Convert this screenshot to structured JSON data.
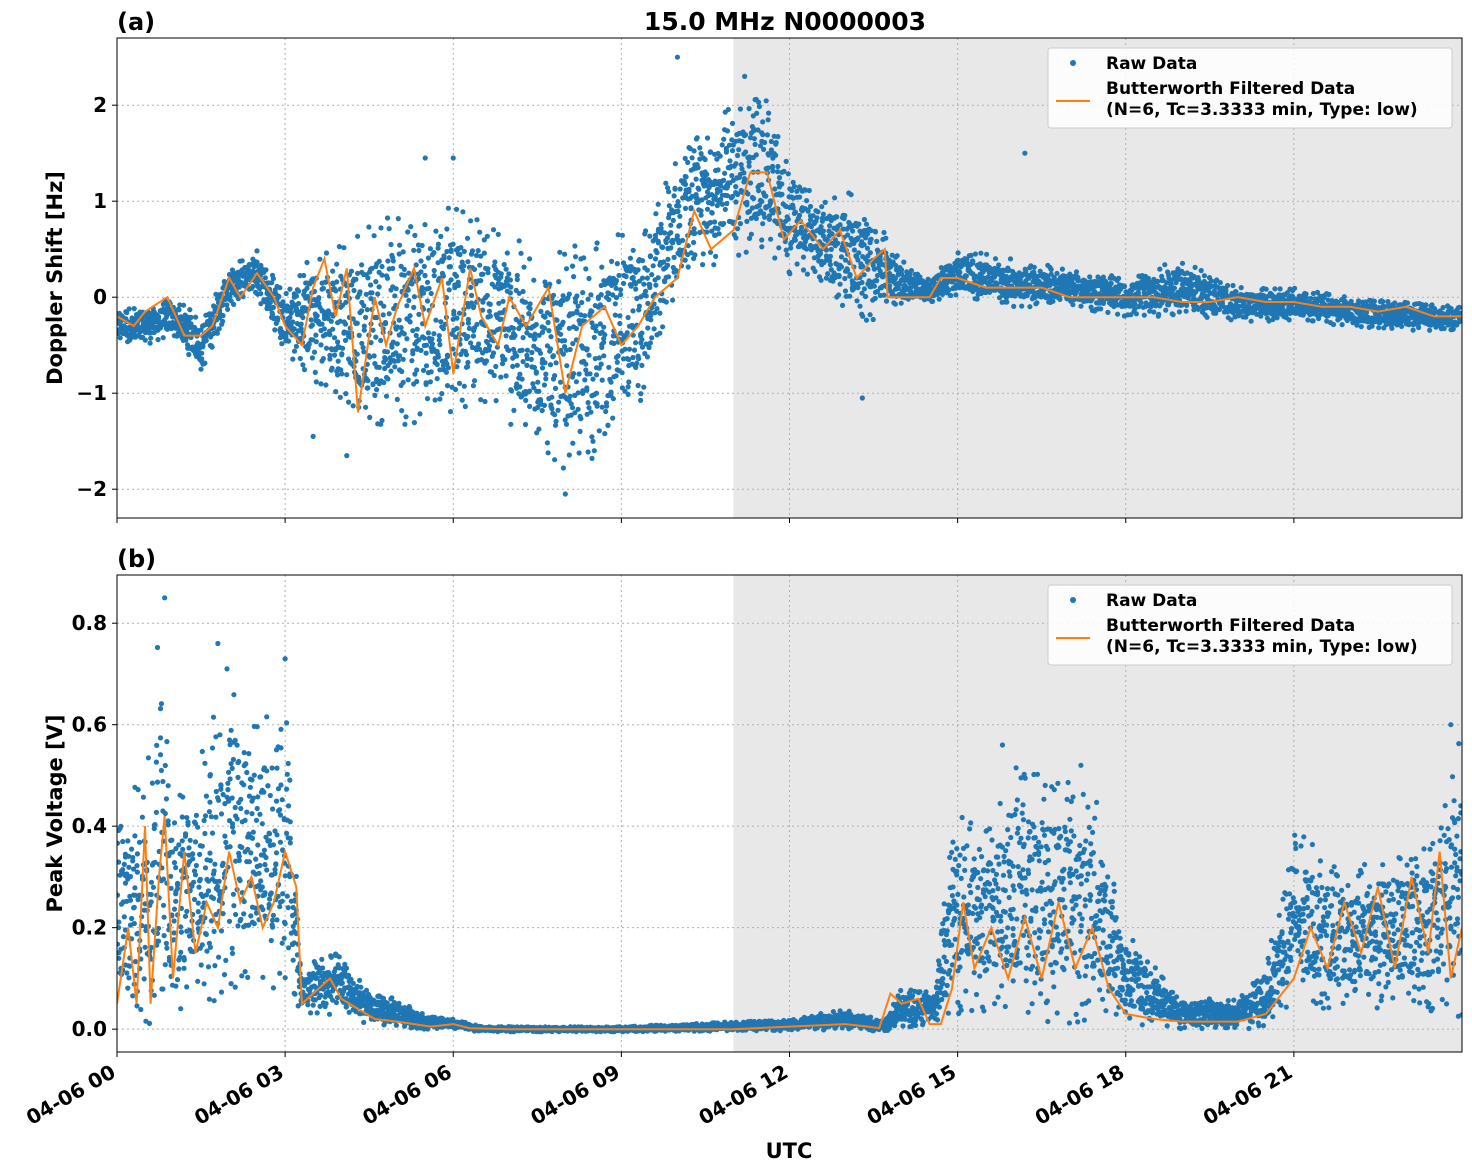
{
  "figure": {
    "title": "15.0 MHz N0000003",
    "xlabel": "UTC"
  },
  "chart_data": [
    {
      "type": "scatter",
      "panel_label": "(a)",
      "title": "15.0 MHz N0000003",
      "xlabel": "UTC",
      "ylabel": "Doppler Shift [Hz]",
      "x_unit": "hours since 04-06 00 UTC",
      "xlim": [
        0,
        24
      ],
      "ylim": [
        -2.3,
        2.7
      ],
      "yticks": [
        2,
        1,
        0,
        -1,
        -2
      ],
      "ytick_labels": [
        "2",
        "1",
        "0",
        "−1",
        "−2"
      ],
      "xticks": [
        0,
        3,
        6,
        9,
        12,
        15,
        18,
        21
      ],
      "xtick_labels": [
        "04-06 00",
        "04-06 03",
        "04-06 06",
        "04-06 09",
        "04-06 12",
        "04-06 15",
        "04-06 18",
        "04-06 21"
      ],
      "grid": true,
      "legend_position": "top-right",
      "shaded_region": [
        11.0,
        24.0
      ],
      "series": [
        {
          "name": "Raw Data",
          "kind": "scatter-band",
          "color": "#1f77b4",
          "x": [
            0.0,
            0.5,
            1.0,
            1.5,
            2.0,
            2.5,
            3.0,
            3.5,
            4.0,
            4.5,
            5.0,
            5.5,
            6.0,
            6.5,
            7.0,
            7.5,
            8.0,
            8.5,
            9.0,
            9.5,
            10.0,
            10.5,
            11.0,
            11.5,
            12.0,
            12.5,
            13.0,
            13.5,
            13.8,
            14.5,
            15.0,
            16.0,
            17.0,
            18.0,
            19.0,
            20.0,
            21.0,
            22.0,
            23.0,
            24.0
          ],
          "upper": [
            -0.1,
            -0.1,
            0.0,
            -0.2,
            0.3,
            0.5,
            0.1,
            0.5,
            0.6,
            0.8,
            0.9,
            1.0,
            1.0,
            0.9,
            0.7,
            0.4,
            0.5,
            0.6,
            0.7,
            0.9,
            1.5,
            1.8,
            2.0,
            2.2,
            1.4,
            1.0,
            1.1,
            1.0,
            0.5,
            0.2,
            0.5,
            0.4,
            0.3,
            0.2,
            0.4,
            0.1,
            0.1,
            0.0,
            -0.05,
            -0.1
          ],
          "lower": [
            -0.5,
            -0.5,
            -0.4,
            -0.8,
            -0.1,
            0.0,
            -0.6,
            -0.9,
            -1.2,
            -1.4,
            -1.3,
            -1.4,
            -1.2,
            -1.1,
            -1.4,
            -1.6,
            -1.8,
            -1.7,
            -1.6,
            -1.0,
            0.0,
            0.3,
            0.4,
            0.5,
            0.2,
            0.2,
            -0.2,
            -0.3,
            -0.1,
            -0.05,
            0.0,
            -0.1,
            -0.1,
            -0.2,
            -0.2,
            -0.25,
            -0.25,
            -0.3,
            -0.35,
            -0.35
          ],
          "outliers": [
            [
              10.0,
              2.5
            ],
            [
              11.2,
              2.3
            ],
            [
              8.0,
              -2.05
            ],
            [
              16.2,
              1.5
            ],
            [
              13.3,
              -1.05
            ],
            [
              5.5,
              1.45
            ],
            [
              6.0,
              1.45
            ],
            [
              4.1,
              -1.65
            ],
            [
              3.5,
              -1.45
            ]
          ]
        },
        {
          "name": "Butterworth Filtered Data\n(N=6, Tc=3.3333 min, Type: low)",
          "kind": "line",
          "color": "#ff7f0e",
          "x": [
            0.0,
            0.3,
            0.5,
            0.9,
            1.2,
            1.5,
            1.7,
            2.0,
            2.2,
            2.5,
            2.8,
            3.0,
            3.3,
            3.5,
            3.7,
            3.9,
            4.1,
            4.3,
            4.6,
            4.8,
            5.0,
            5.3,
            5.5,
            5.8,
            6.0,
            6.3,
            6.5,
            6.8,
            7.0,
            7.3,
            7.7,
            8.0,
            8.3,
            8.7,
            9.0,
            9.3,
            9.6,
            10.0,
            10.3,
            10.6,
            11.0,
            11.3,
            11.6,
            11.9,
            12.2,
            12.6,
            12.9,
            13.2,
            13.5,
            13.7,
            13.75,
            14.0,
            14.5,
            14.7,
            15.0,
            15.5,
            16.0,
            16.5,
            17.0,
            17.5,
            18.0,
            18.5,
            19.0,
            19.5,
            20.0,
            20.5,
            21.0,
            21.5,
            22.0,
            22.5,
            23.0,
            23.5,
            24.0
          ],
          "y": [
            -0.2,
            -0.3,
            -0.15,
            0.0,
            -0.4,
            -0.4,
            -0.3,
            0.2,
            0.0,
            0.25,
            0.0,
            -0.3,
            -0.5,
            0.1,
            0.4,
            -0.2,
            0.3,
            -1.2,
            0.0,
            -0.5,
            -0.1,
            0.3,
            -0.3,
            0.2,
            -0.8,
            0.3,
            -0.2,
            -0.5,
            0.0,
            -0.3,
            0.1,
            -1.0,
            -0.3,
            -0.1,
            -0.5,
            -0.3,
            0.0,
            0.2,
            0.9,
            0.5,
            0.7,
            1.3,
            1.3,
            0.6,
            0.8,
            0.5,
            0.7,
            0.2,
            0.4,
            0.5,
            0.0,
            0.0,
            0.0,
            0.2,
            0.2,
            0.1,
            0.1,
            0.1,
            0.0,
            0.0,
            0.0,
            0.0,
            -0.05,
            -0.05,
            0.0,
            -0.05,
            -0.05,
            -0.1,
            -0.1,
            -0.15,
            -0.1,
            -0.2,
            -0.2
          ]
        }
      ]
    },
    {
      "type": "scatter",
      "panel_label": "(b)",
      "xlabel": "UTC",
      "ylabel": "Peak Voltage [V]",
      "x_unit": "hours since 04-06 00 UTC",
      "xlim": [
        0,
        24
      ],
      "ylim": [
        -0.045,
        0.895
      ],
      "yticks": [
        0.0,
        0.2,
        0.4,
        0.6,
        0.8
      ],
      "ytick_labels": [
        "0.0",
        "0.2",
        "0.4",
        "0.6",
        "0.8"
      ],
      "xticks": [
        0,
        3,
        6,
        9,
        12,
        15,
        18,
        21
      ],
      "xtick_labels": [
        "04-06 00",
        "04-06 03",
        "04-06 06",
        "04-06 09",
        "04-06 12",
        "04-06 15",
        "04-06 18",
        "04-06 21"
      ],
      "grid": true,
      "legend_position": "top-right",
      "shaded_region": [
        11.0,
        24.0
      ],
      "series": [
        {
          "name": "Raw Data",
          "kind": "scatter-band",
          "color": "#1f77b4",
          "x": [
            0.0,
            0.5,
            0.8,
            1.0,
            1.5,
            2.0,
            2.5,
            3.0,
            3.2,
            3.3,
            3.5,
            4.0,
            4.5,
            5.0,
            5.5,
            6.0,
            6.5,
            9.0,
            12.0,
            13.0,
            13.7,
            14.0,
            14.6,
            14.8,
            15.0,
            15.5,
            16.0,
            16.5,
            17.0,
            17.5,
            18.0,
            19.0,
            20.0,
            20.5,
            21.0,
            21.5,
            22.0,
            22.5,
            23.0,
            23.5,
            24.0
          ],
          "upper": [
            0.45,
            0.5,
            0.85,
            0.45,
            0.55,
            0.75,
            0.6,
            0.72,
            0.3,
            0.1,
            0.15,
            0.15,
            0.07,
            0.06,
            0.03,
            0.02,
            0.005,
            0.005,
            0.02,
            0.04,
            0.02,
            0.08,
            0.08,
            0.3,
            0.45,
            0.4,
            0.55,
            0.5,
            0.5,
            0.45,
            0.2,
            0.06,
            0.06,
            0.12,
            0.4,
            0.35,
            0.3,
            0.35,
            0.35,
            0.4,
            0.6
          ],
          "lower": [
            0.0,
            0.0,
            0.0,
            0.03,
            0.05,
            0.05,
            0.1,
            0.05,
            0.05,
            0.03,
            0.03,
            0.02,
            0.01,
            0.005,
            0.0,
            0.0,
            -0.005,
            -0.005,
            -0.003,
            -0.003,
            -0.003,
            0.0,
            0.005,
            0.03,
            0.03,
            0.02,
            0.02,
            0.01,
            0.01,
            0.02,
            0.01,
            0.0,
            0.0,
            0.0,
            0.05,
            0.04,
            0.04,
            0.04,
            0.04,
            0.03,
            0.02
          ],
          "outliers": [
            [
              0.85,
              0.85
            ],
            [
              1.8,
              0.76
            ],
            [
              3.0,
              0.73
            ],
            [
              15.8,
              0.56
            ],
            [
              17.2,
              0.52
            ],
            [
              23.8,
              0.6
            ]
          ]
        },
        {
          "name": "Butterworth Filtered Data\n(N=6, Tc=3.3333 min, Type: low)",
          "kind": "line",
          "color": "#ff7f0e",
          "x": [
            0.0,
            0.2,
            0.35,
            0.5,
            0.6,
            0.75,
            0.85,
            1.0,
            1.2,
            1.4,
            1.6,
            1.8,
            2.0,
            2.2,
            2.4,
            2.6,
            2.8,
            3.0,
            3.2,
            3.3,
            3.5,
            3.8,
            4.0,
            4.3,
            4.6,
            5.0,
            5.3,
            5.6,
            6.0,
            6.3,
            7.0,
            9.0,
            11.0,
            12.0,
            13.0,
            13.4,
            13.6,
            13.8,
            14.0,
            14.3,
            14.5,
            14.7,
            14.9,
            15.1,
            15.3,
            15.6,
            15.9,
            16.2,
            16.5,
            16.8,
            17.1,
            17.4,
            17.7,
            18.0,
            18.5,
            19.0,
            19.5,
            20.0,
            20.5,
            21.0,
            21.3,
            21.6,
            21.9,
            22.2,
            22.5,
            22.8,
            23.1,
            23.4,
            23.6,
            23.8,
            24.0
          ],
          "y": [
            0.05,
            0.2,
            0.05,
            0.4,
            0.05,
            0.3,
            0.42,
            0.1,
            0.35,
            0.15,
            0.25,
            0.2,
            0.35,
            0.25,
            0.3,
            0.2,
            0.25,
            0.35,
            0.28,
            0.05,
            0.07,
            0.1,
            0.06,
            0.04,
            0.02,
            0.015,
            0.01,
            0.005,
            0.01,
            0.002,
            0.0,
            0.0,
            0.0,
            0.005,
            0.01,
            0.005,
            0.002,
            0.07,
            0.05,
            0.06,
            0.01,
            0.01,
            0.08,
            0.25,
            0.12,
            0.2,
            0.1,
            0.22,
            0.1,
            0.25,
            0.12,
            0.2,
            0.08,
            0.03,
            0.02,
            0.015,
            0.015,
            0.015,
            0.03,
            0.1,
            0.2,
            0.12,
            0.25,
            0.15,
            0.28,
            0.12,
            0.3,
            0.15,
            0.35,
            0.1,
            0.2
          ]
        }
      ]
    }
  ]
}
